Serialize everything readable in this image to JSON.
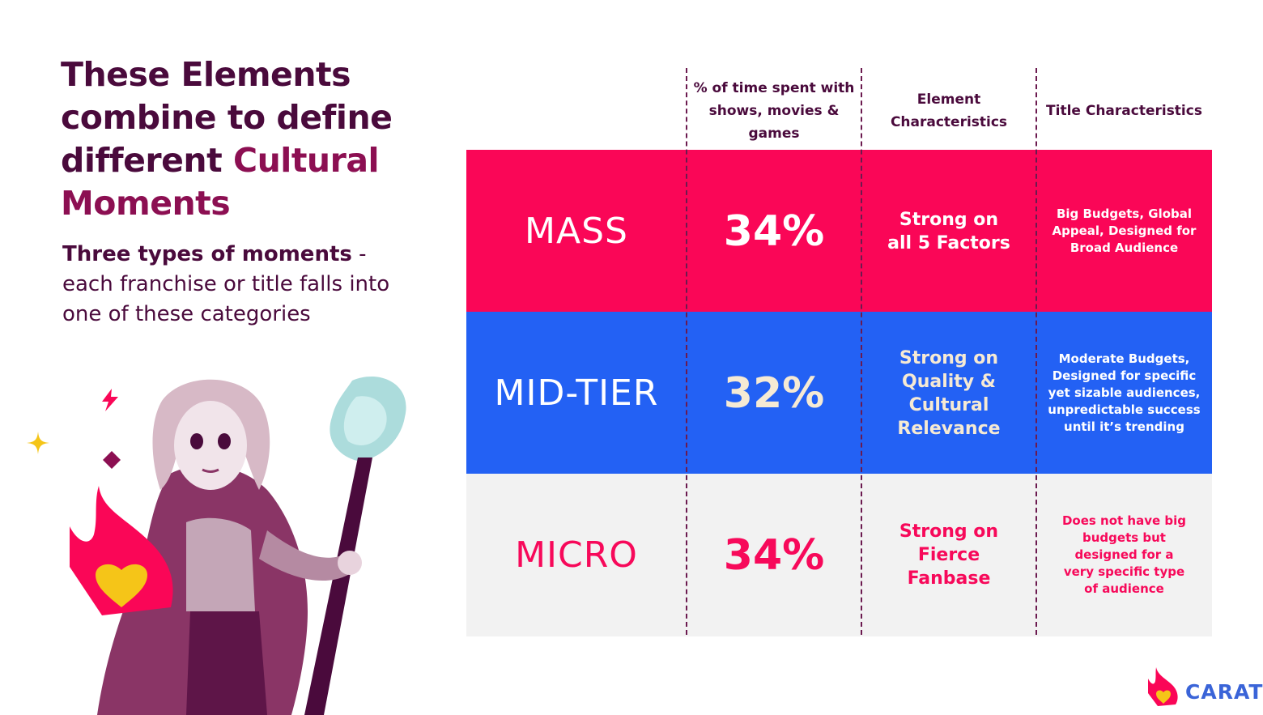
{
  "heading": {
    "line_plain": "These Elements combine to define different",
    "line_accent": "Cultural Moments"
  },
  "subheading": {
    "bold": "Three types of moments",
    "rest": " - each franchise or title falls into one of these categories"
  },
  "table": {
    "headers": {
      "pct": "% of time spent with shows, movies & games",
      "element": "Element Characteristics",
      "title": "Title Characteristics"
    },
    "rows": [
      {
        "type": "MASS",
        "pct": "34%",
        "element": "Strong on all 5 Factors",
        "title": "Big Budgets, Global Appeal, Designed for Broad Audience"
      },
      {
        "type": "MID-TIER",
        "pct": "32%",
        "element": "Strong on Quality & Cultural Relevance",
        "title": "Moderate Budgets, Designed for specific yet sizable audiences, unpredictable success until it’s trending"
      },
      {
        "type": "MICRO",
        "pct": "34%",
        "element": "Strong on Fierce Fanbase",
        "title": "Does not have big budgets but designed for a very specific type of audience"
      }
    ]
  },
  "colors": {
    "mass_bg": "#fa0657",
    "midtier_bg": "#2361f4",
    "micro_bg": "#f2f2f2",
    "mass_text": "#ffffff",
    "midtier_text": "#ffffff",
    "midtier_pct": "#f6ead4",
    "micro_text": "#f7095a",
    "heading": "#4a0a3c",
    "accent": "#8c0f52",
    "brand_blue": "#3a64d8"
  },
  "logo": {
    "text": "CARAT"
  },
  "icons": [
    "lightning-icon",
    "sparkle-icon",
    "diamond-icon",
    "flame-heart-icon",
    "character-illustration"
  ]
}
